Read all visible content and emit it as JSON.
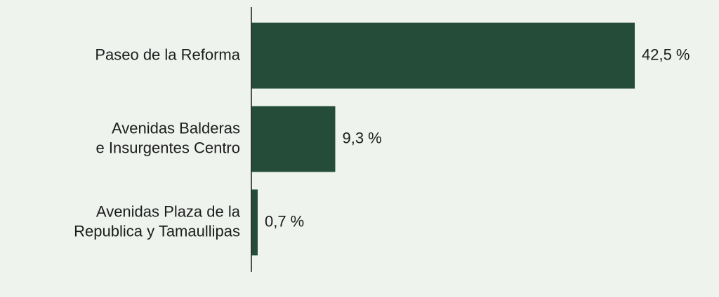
{
  "chart_data": {
    "type": "hbar",
    "categories": [
      [
        "Paseo de la Reforma"
      ],
      [
        "Avenidas Balderas",
        "e Insurgentes Centro"
      ],
      [
        "Avenidas Plaza de la",
        "Republica y Tamaullipas"
      ]
    ],
    "values": [
      42.5,
      9.3,
      0.7
    ],
    "value_labels": [
      "42,5 %",
      "9,3 %",
      "0,7 %"
    ],
    "color": "#244c38"
  }
}
